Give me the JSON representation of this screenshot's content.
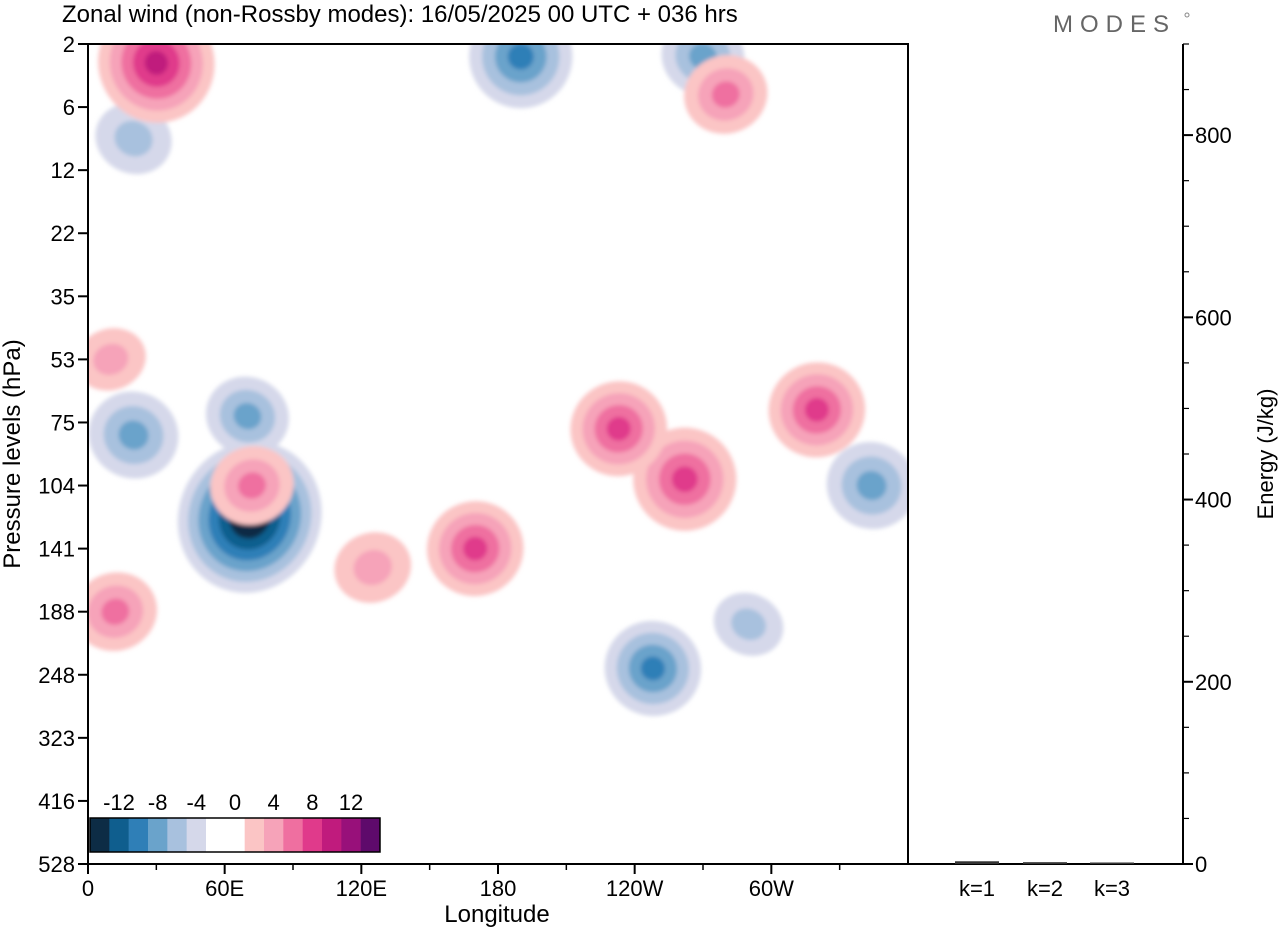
{
  "title": "Zonal wind (non-Rossby modes):  16/05/2025  00 UTC  + 036 hrs",
  "brand": "MODES",
  "chart_data": [
    {
      "type": "heatmap",
      "xlabel": "Longitude",
      "ylabel": "Pressure levels (hPa)",
      "x_ticks": [
        "0",
        "60E",
        "120E",
        "180",
        "120W",
        "60W"
      ],
      "y_ticks": [
        "2",
        "6",
        "12",
        "22",
        "35",
        "53",
        "75",
        "104",
        "141",
        "188",
        "248",
        "323",
        "416",
        "528"
      ],
      "colorbar": {
        "labels": [
          "-12",
          "-8",
          "-4",
          "0",
          "4",
          "8",
          "12"
        ],
        "colors": [
          "#0d2c45",
          "#0f5e8e",
          "#2f7fb7",
          "#6aa3cb",
          "#a8c1de",
          "#d5d8ea",
          "#ffffff",
          "#ffffff",
          "#fbc5c5",
          "#f6a3b9",
          "#ef6fa0",
          "#e03a8b",
          "#c01b7d",
          "#98107a",
          "#5e0a6b"
        ]
      },
      "features": [
        {
          "lon": 71,
          "level": 7.5,
          "value": -14
        },
        {
          "lon": 20,
          "level": 6.2,
          "value": -6
        },
        {
          "lon": 70,
          "level": 5.9,
          "value": -5
        },
        {
          "lon": 248,
          "level": 9.9,
          "value": -7
        },
        {
          "lon": 290,
          "level": 9.2,
          "value": -3
        },
        {
          "lon": 344,
          "level": 7.0,
          "value": -6
        },
        {
          "lon": 190,
          "level": 0.2,
          "value": -8
        },
        {
          "lon": 270,
          "level": 0.2,
          "value": -5
        },
        {
          "lon": 20,
          "level": 1.5,
          "value": -4
        },
        {
          "lon": 30,
          "level": 0.3,
          "value": 10
        },
        {
          "lon": 170,
          "level": 8.0,
          "value": 7
        },
        {
          "lon": 125,
          "level": 8.3,
          "value": 4
        },
        {
          "lon": 262,
          "level": 6.9,
          "value": 8
        },
        {
          "lon": 233,
          "level": 6.1,
          "value": 7
        },
        {
          "lon": 320,
          "level": 5.8,
          "value": 7
        },
        {
          "lon": 72,
          "level": 7.0,
          "value": 5
        },
        {
          "lon": 12,
          "level": 9.0,
          "value": 5
        },
        {
          "lon": 10,
          "level": 5.0,
          "value": 3
        },
        {
          "lon": 280,
          "level": 0.8,
          "value": 5
        }
      ]
    },
    {
      "type": "bar",
      "ylabel": "Energy (J/kg)",
      "categories": [
        "k=1",
        "k=2",
        "k=3"
      ],
      "values": [
        3,
        2,
        1
      ],
      "ylim": [
        0,
        900
      ],
      "y_ticks": [
        0,
        200,
        400,
        600,
        800
      ]
    }
  ]
}
